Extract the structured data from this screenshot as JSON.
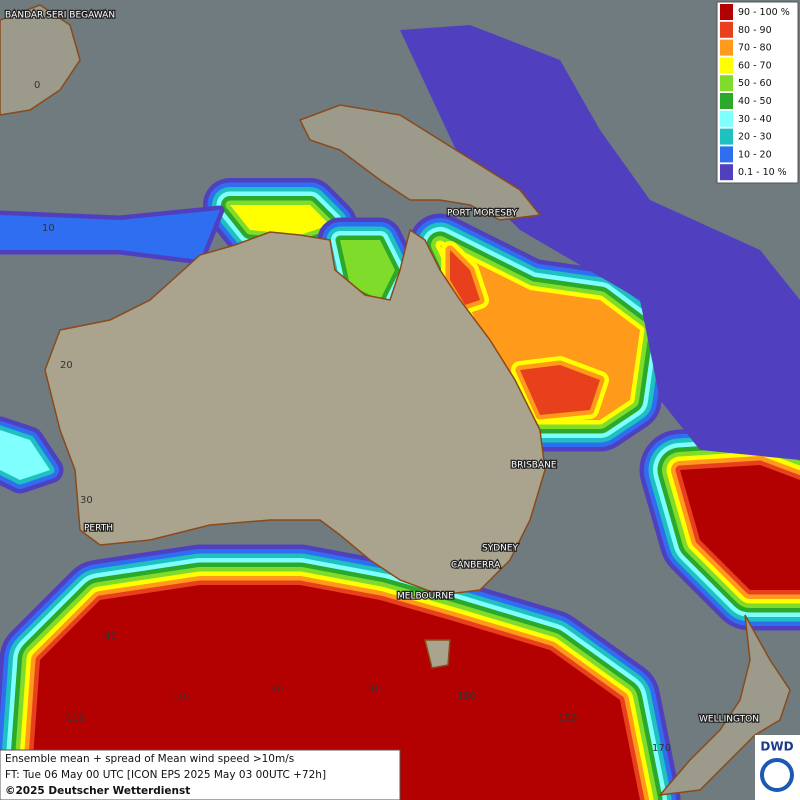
{
  "legend": {
    "items": [
      {
        "label": "90 - 100 %",
        "color": "#b30000"
      },
      {
        "label": "80 - 90",
        "color": "#e8401c"
      },
      {
        "label": "70 - 80",
        "color": "#ff9a1a"
      },
      {
        "label": "60 - 70",
        "color": "#ffff00"
      },
      {
        "label": "50 - 60",
        "color": "#80dc2a"
      },
      {
        "label": "40 - 50",
        "color": "#2ca82a"
      },
      {
        "label": "30 - 40",
        "color": "#80ffff"
      },
      {
        "label": "20 - 30",
        "color": "#1ec0c0"
      },
      {
        "label": "10 - 20",
        "color": "#2f6ef0"
      },
      {
        "label": "0.1 - 10 %",
        "color": "#5040c0"
      }
    ]
  },
  "places": [
    "BANDAR SERI BEGAWAN",
    "PORT MORESBY",
    "BRISBANE",
    "SYDNEY",
    "CANBERRA",
    "MELBOURNE",
    "PERTH",
    "WELLINGTON"
  ],
  "grid_labels": [
    "0",
    "10",
    "20",
    "30",
    "40",
    "110",
    "120",
    "130",
    "140",
    "150",
    "160",
    "170"
  ],
  "info": {
    "line1": "Ensemble mean + spread of Mean wind speed >10m/s",
    "line2": "FT: Tue 06 May 00 UTC [ICON EPS 2025 May 03 00UTC +72h]",
    "line3": "©2025 Deutscher Wetterdienst"
  },
  "logo": "DWD"
}
